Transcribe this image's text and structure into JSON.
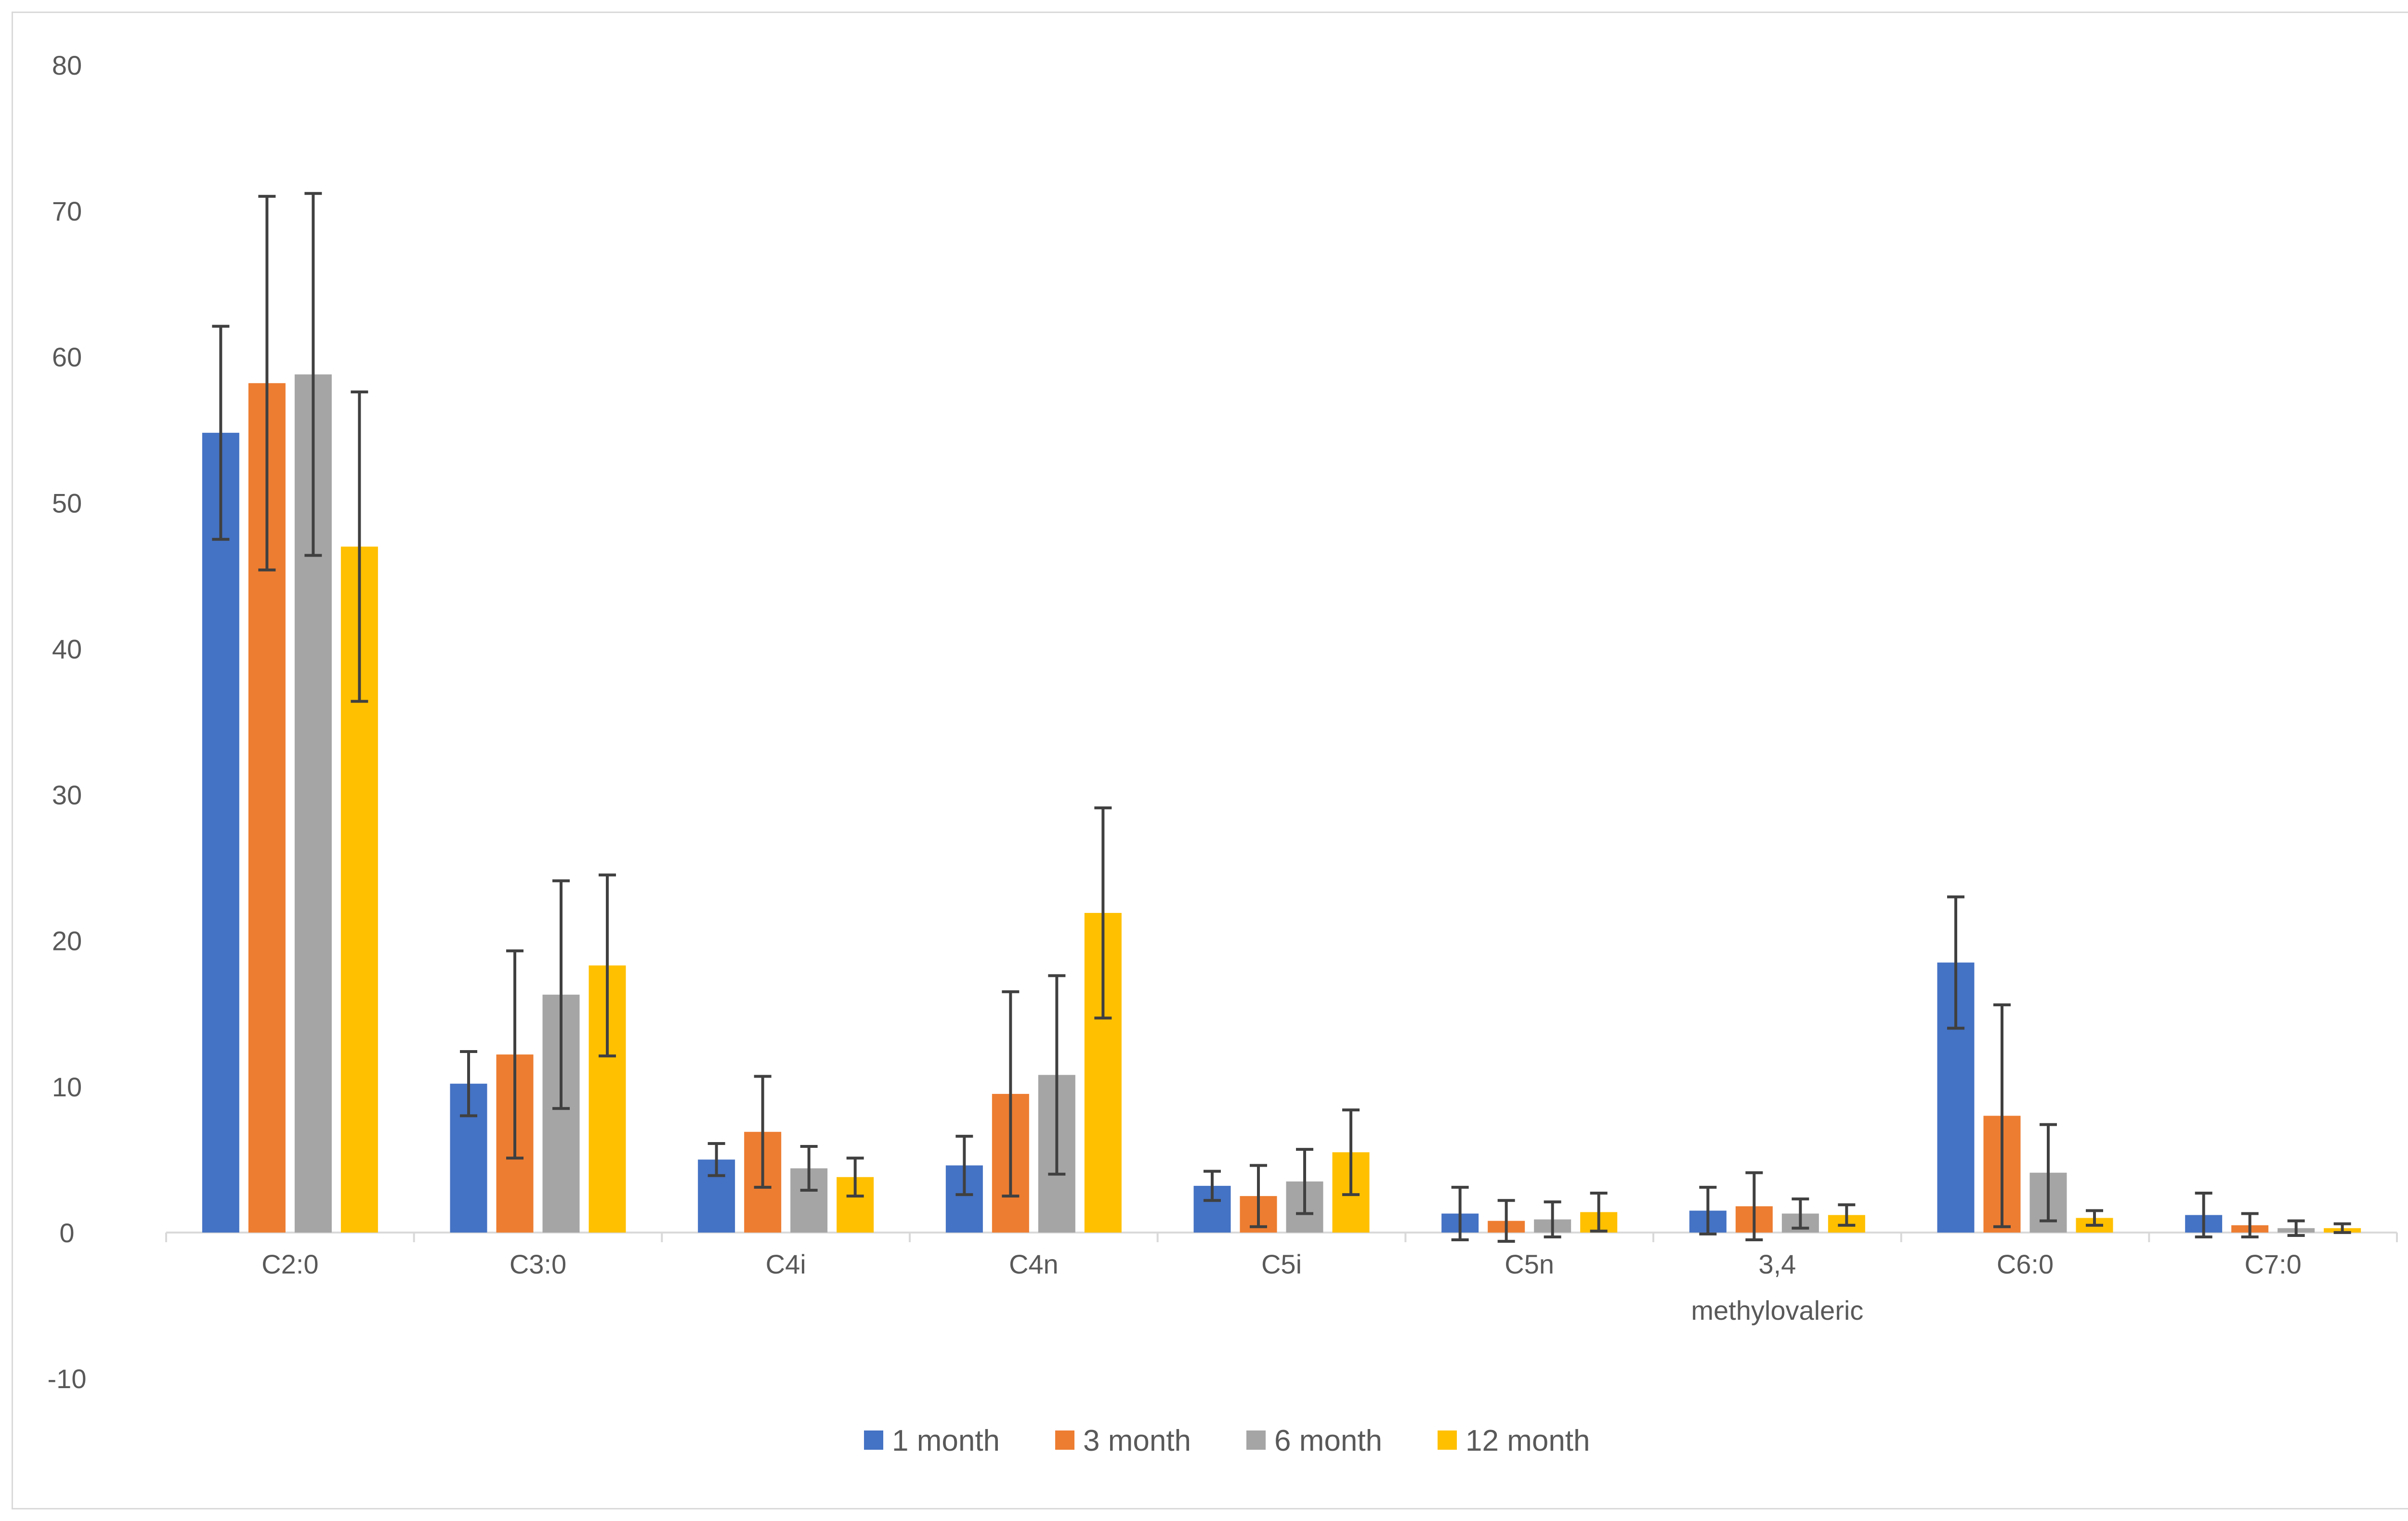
{
  "chart_data": {
    "type": "bar",
    "title": "",
    "xlabel": "",
    "ylabel": "",
    "ylim": [
      -10,
      80
    ],
    "yticks": [
      -10,
      0,
      10,
      20,
      30,
      40,
      50,
      60,
      70,
      80
    ],
    "ytick_labels": [
      "-10",
      "0",
      "10",
      "20",
      "30",
      "40",
      "50",
      "60",
      "70",
      "80"
    ],
    "grid": false,
    "legend_position": "bottom",
    "categories": [
      [
        "C2:0"
      ],
      [
        "C3:0"
      ],
      [
        "C4i"
      ],
      [
        "C4n"
      ],
      [
        "C5i"
      ],
      [
        "C5n"
      ],
      [
        "3,4",
        "methylovaleric"
      ],
      [
        "C6:0"
      ],
      [
        "C7:0"
      ]
    ],
    "series": [
      {
        "name": "1 month",
        "color": "#4472c4",
        "values": [
          54.8,
          10.2,
          5.0,
          4.6,
          3.2,
          1.3,
          1.5,
          18.5,
          1.2
        ],
        "errors": [
          7.3,
          2.2,
          1.1,
          2.0,
          1.0,
          1.8,
          1.6,
          4.5,
          1.5
        ]
      },
      {
        "name": "3 month",
        "color": "#ed7d31",
        "values": [
          58.2,
          12.2,
          6.9,
          9.5,
          2.5,
          0.8,
          1.8,
          8.0,
          0.5
        ],
        "errors": [
          12.8,
          7.1,
          3.8,
          7.0,
          2.1,
          1.4,
          2.3,
          7.6,
          0.8
        ]
      },
      {
        "name": "6 month",
        "color": "#a5a5a5",
        "values": [
          58.8,
          16.3,
          4.4,
          10.8,
          3.5,
          0.9,
          1.3,
          4.1,
          0.3
        ],
        "errors": [
          12.4,
          7.8,
          1.5,
          6.8,
          2.2,
          1.2,
          1.0,
          3.3,
          0.5
        ]
      },
      {
        "name": "12 month",
        "color": "#ffc000",
        "values": [
          47.0,
          18.3,
          3.8,
          21.9,
          5.5,
          1.4,
          1.2,
          1.0,
          0.3
        ],
        "errors": [
          10.6,
          6.2,
          1.3,
          7.2,
          2.9,
          1.3,
          0.7,
          0.5,
          0.3
        ]
      }
    ],
    "axis_color": "#d9d9d9",
    "text_color": "#595959",
    "error_bar_color": "#404040"
  }
}
